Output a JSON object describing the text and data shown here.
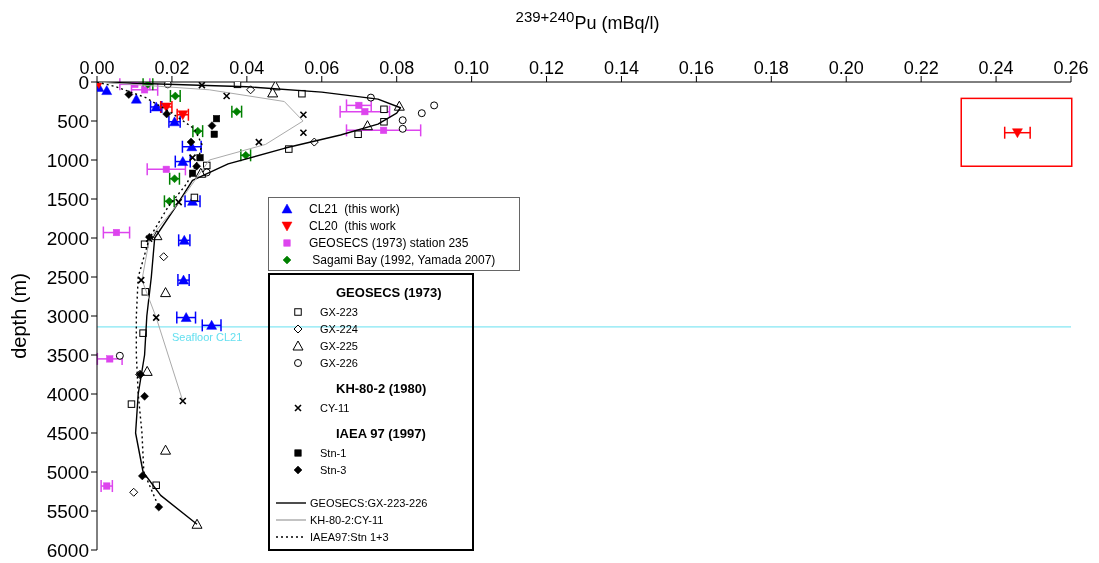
{
  "chart_data": {
    "type": "scatter",
    "xlabel": "$^{239+240}$Pu (mBq/l)",
    "ylabel": "depth (m)",
    "xlim": [
      0,
      0.26
    ],
    "xticks": [
      {
        "value": 0,
        "label": "0.00"
      },
      {
        "value": 0.02,
        "label": "0.02"
      },
      {
        "value": 0.04,
        "label": "0.04"
      },
      {
        "value": 0.06,
        "label": "0.06"
      },
      {
        "value": 0.08,
        "label": "0.08"
      },
      {
        "value": 0.1,
        "label": "0.10"
      },
      {
        "value": 0.12,
        "label": "0.12"
      },
      {
        "value": 0.14,
        "label": "0.14"
      },
      {
        "value": 0.16,
        "label": "0.16"
      },
      {
        "value": 0.18,
        "label": "0.18"
      },
      {
        "value": 0.2,
        "label": "0.20"
      },
      {
        "value": 0.22,
        "label": "0.22"
      },
      {
        "value": 0.24,
        "label": "0.24"
      },
      {
        "value": 0.26,
        "label": "0.26"
      }
    ],
    "ylim": [
      6000,
      0
    ],
    "yticks": [
      0,
      500,
      1000,
      1500,
      2000,
      2500,
      3000,
      3500,
      4000,
      4500,
      5000,
      5500,
      6000
    ],
    "legend": "center left",
    "annotations": [
      "GEOSECS (1973)",
      "KH-80-2 (1980)",
      "IAEA 97 (1997)"
    ],
    "ref_lines": [
      {
        "axis": "y",
        "value": 3140,
        "label": "Seafloor CL21",
        "color": "#66e0f0"
      }
    ],
    "series": [
      {
        "name": "CL21  (this work)",
        "marker": "triangle",
        "color": "#0000ff",
        "x": [
          0.0005,
          0.0026,
          0.0105,
          0.0158,
          0.0207,
          0.0253,
          0.0229,
          0.0255,
          0.0233,
          0.0231,
          0.0238,
          0.0306
        ],
        "values": [
          70,
          110,
          220,
          320,
          510,
          830,
          1020,
          1530,
          2030,
          2540,
          3020,
          3120
        ],
        "xerrors": [
          null,
          null,
          null,
          0.0015,
          0.0015,
          0.0025,
          0.002,
          0.002,
          0.0015,
          0.0015,
          0.0025,
          0.0025
        ]
      },
      {
        "name": "CL20  (this work",
        "marker": "triangle-down",
        "color": "#ff0000",
        "x": [
          0.0005,
          0.0185,
          0.0229,
          0.2457
        ],
        "values": [
          20,
          320,
          420,
          650
        ],
        "xerrors": [
          null,
          0.0015,
          0.0015,
          0.0034
        ]
      },
      {
        "name": "GEOSECS (1973) station 235",
        "marker": "square",
        "color": "#dd44ee",
        "x": [
          0.0101,
          0.0127,
          0.0699,
          0.0715,
          0.0765,
          0.0185,
          0.0052,
          0.0034,
          0.0026
        ],
        "values": [
          30,
          100,
          300,
          380,
          620,
          1120,
          1930,
          3550,
          5180
        ],
        "xerrors": [
          0.004,
          0.0035,
          0.0033,
          0.0066,
          0.0099,
          0.0051,
          0.0035,
          0.0033,
          0.0015
        ]
      },
      {
        "name": " Sagami Bay (1992, Yamada 2007)",
        "marker": "diamond",
        "color": "#008000",
        "x": [
          0.0136,
          0.0209,
          0.0373,
          0.0269,
          0.0397,
          0.0207,
          0.0193
        ],
        "values": [
          30,
          180,
          380,
          630,
          940,
          1240,
          1530
        ],
        "xerrors": [
          0.0013,
          0.0013,
          0.0013,
          0.0013,
          0.0013,
          0.0013,
          0.0013
        ]
      },
      {
        "name": "GX-223",
        "marker": "square-open",
        "color": "#000000",
        "x": [
          0.0375,
          0.0547,
          0.0766,
          0.0766,
          0.0697,
          0.0512,
          0.0293,
          0.026,
          0.0127,
          0.0129,
          0.0123,
          0.0092,
          0.0158
        ],
        "values": [
          30,
          150,
          350,
          510,
          670,
          860,
          1070,
          1480,
          2080,
          2690,
          3220,
          4130,
          5170
        ]
      },
      {
        "name": "GX-224",
        "marker": "diamond-open",
        "color": "#000000",
        "x": [
          0.041,
          0.058,
          0.0178,
          0.0114,
          0.0098
        ],
        "values": [
          100,
          770,
          2240,
          3750,
          5260
        ]
      },
      {
        "name": "GX-225",
        "marker": "triangle-open",
        "color": "#000000",
        "x": [
          0.0476,
          0.0469,
          0.0807,
          0.0722,
          0.0277,
          0.016,
          0.0183,
          0.0134,
          0.0183,
          0.0267
        ],
        "values": [
          50,
          140,
          310,
          560,
          1170,
          1970,
          2700,
          3710,
          4720,
          5670
        ]
      },
      {
        "name": "GX-226",
        "marker": "circle-open",
        "color": "#000000",
        "x": [
          0.0189,
          0.0731,
          0.09,
          0.0867,
          0.0816,
          0.0816,
          0.0293,
          0.0061
        ],
        "values": [
          30,
          200,
          300,
          400,
          490,
          600,
          1160,
          3510
        ]
      },
      {
        "name": "CY-11",
        "marker": "cross",
        "color": "#000000",
        "x": [
          0.028,
          0.0346,
          0.0551,
          0.0551,
          0.0432,
          0.0255,
          0.0218,
          0.0139,
          0.0118,
          0.0158,
          0.0229
        ],
        "values": [
          40,
          180,
          420,
          650,
          770,
          970,
          1540,
          2010,
          2540,
          3020,
          4090
        ]
      },
      {
        "name": "Stn-1",
        "marker": "square",
        "color": "#000000",
        "x": [
          0.0319,
          0.0313,
          0.0275,
          0.0255
        ],
        "values": [
          470,
          670,
          970,
          1170
        ]
      },
      {
        "name": "Stn-3",
        "marker": "diamond",
        "color": "#000000",
        "x": [
          0.0085,
          0.0186,
          0.0307,
          0.0251,
          0.0266,
          0.014,
          0.0116,
          0.0127,
          0.0121,
          0.0165
        ],
        "values": [
          160,
          410,
          560,
          770,
          1080,
          1990,
          3750,
          4030,
          5050,
          5450
        ]
      },
      {
        "name": "GEOSECS:GX-223-226",
        "type": "line",
        "marker": "none",
        "line_style": "solid",
        "color": "#000000",
        "x": [
          0,
          0.04,
          0.06,
          0.075,
          0.081,
          0.08,
          0.075,
          0.065,
          0.05,
          0.035,
          0.0255,
          0.021,
          0.0154,
          0.0145,
          0.0133,
          0.0127,
          0.011,
          0.0103,
          0.0123,
          0.017,
          0.0267
        ],
        "values": [
          0,
          60,
          130,
          220,
          330,
          400,
          540,
          680,
          850,
          1050,
          1260,
          1600,
          2000,
          2500,
          3000,
          3500,
          4000,
          4500,
          5000,
          5300,
          5670
        ]
      },
      {
        "name": "KH-80-2:CY-11",
        "type": "line",
        "marker": "none",
        "line_style": "solid",
        "color": "#aaaaaa",
        "x": [
          0,
          0.03,
          0.05,
          0.055,
          0.045,
          0.03,
          0.022,
          0.014,
          0.012,
          0.0158,
          0.0229
        ],
        "values": [
          0,
          100,
          250,
          500,
          800,
          1000,
          1540,
          2010,
          2540,
          3020,
          4090
        ]
      },
      {
        "name": "IAEA97:Stn 1+3",
        "type": "line",
        "marker": "none",
        "line_style": "dotted",
        "color": "#000000",
        "x": [
          0,
          0.005,
          0.013,
          0.02,
          0.026,
          0.028,
          0.027,
          0.024,
          0.019,
          0.014,
          0.011,
          0.0105,
          0.0105,
          0.011,
          0.012,
          0.0125,
          0.0165
        ],
        "values": [
          0,
          60,
          200,
          400,
          600,
          800,
          1000,
          1300,
          1600,
          2000,
          2500,
          3000,
          3500,
          4000,
          4500,
          5000,
          5450
        ]
      }
    ]
  }
}
